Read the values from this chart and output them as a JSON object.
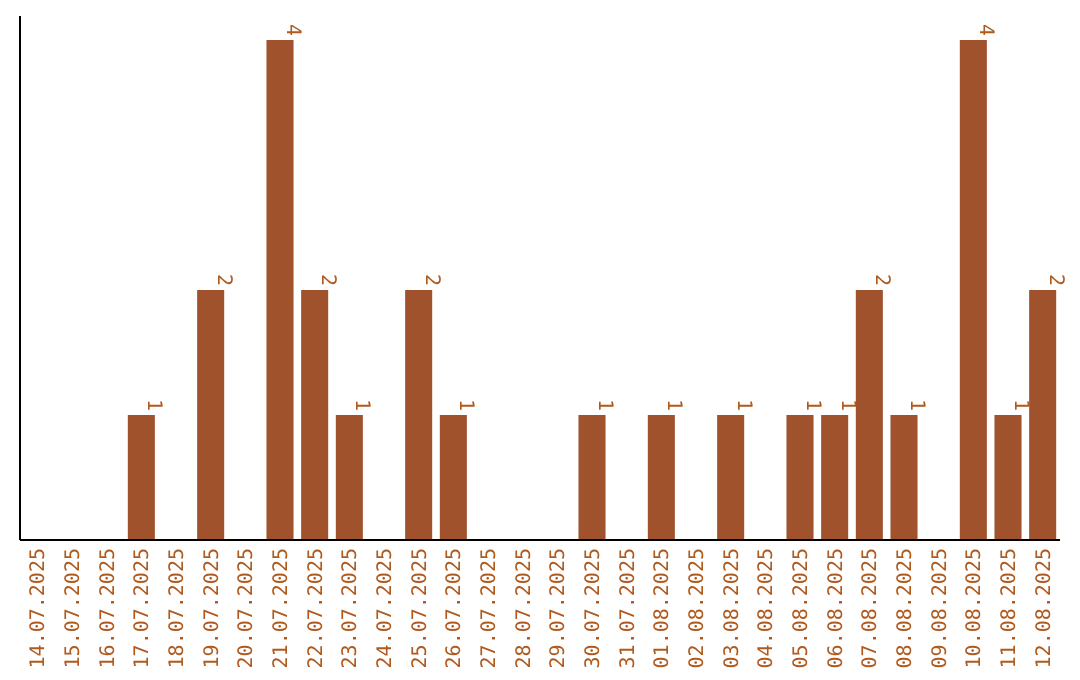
{
  "chart_data": {
    "type": "bar",
    "categories": [
      "14.07.2025",
      "15.07.2025",
      "16.07.2025",
      "17.07.2025",
      "18.07.2025",
      "19.07.2025",
      "20.07.2025",
      "21.07.2025",
      "22.07.2025",
      "23.07.2025",
      "24.07.2025",
      "25.07.2025",
      "26.07.2025",
      "27.07.2025",
      "28.07.2025",
      "29.07.2025",
      "30.07.2025",
      "31.07.2025",
      "01.08.2025",
      "02.08.2025",
      "03.08.2025",
      "04.08.2025",
      "05.08.2025",
      "06.08.2025",
      "07.08.2025",
      "08.08.2025",
      "09.08.2025",
      "10.08.2025",
      "11.08.2025",
      "12.08.2025"
    ],
    "values": [
      0,
      0,
      0,
      1,
      0,
      2,
      0,
      4,
      2,
      1,
      0,
      2,
      1,
      0,
      0,
      0,
      1,
      0,
      1,
      0,
      1,
      0,
      1,
      1,
      2,
      1,
      0,
      4,
      1,
      2
    ],
    "value_labels": [
      null,
      null,
      null,
      "1",
      null,
      "2",
      null,
      "4",
      "2",
      "1",
      null,
      "2",
      "1",
      null,
      null,
      null,
      "1",
      null,
      "1",
      null,
      "1",
      null,
      "1",
      "1",
      "2",
      "1",
      null,
      "4",
      "1",
      "2"
    ],
    "color": "#a0522d",
    "ylim": [
      0,
      4
    ],
    "tick_labels": "x"
  }
}
